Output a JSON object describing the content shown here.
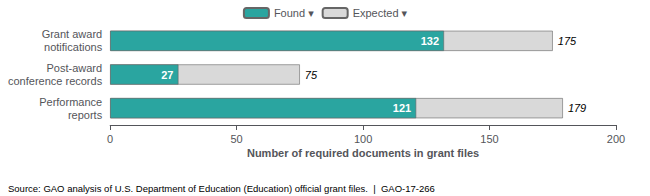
{
  "chart_data": {
    "type": "bar",
    "orientation": "horizontal",
    "categories": [
      "Grant award\nnotifications",
      "Post-award\nconference records",
      "Performance\nreports"
    ],
    "series": [
      {
        "name": "Found ▾",
        "color": "#2aa5a0",
        "values": [
          132,
          27,
          121
        ]
      },
      {
        "name": "Expected ▾",
        "color": "#d9d9d9",
        "values": [
          175,
          75,
          179
        ]
      }
    ],
    "xlabel": "Number of required documents in grant files",
    "xlim": [
      0,
      200
    ],
    "xticks": [
      0,
      50,
      100,
      150,
      200
    ],
    "data_labels": true,
    "grid": false,
    "legend": "top",
    "annotations": [
      "Source: GAO analysis of U.S. Department of Education (Education) official grant files.  |  GAO-17-266"
    ]
  }
}
